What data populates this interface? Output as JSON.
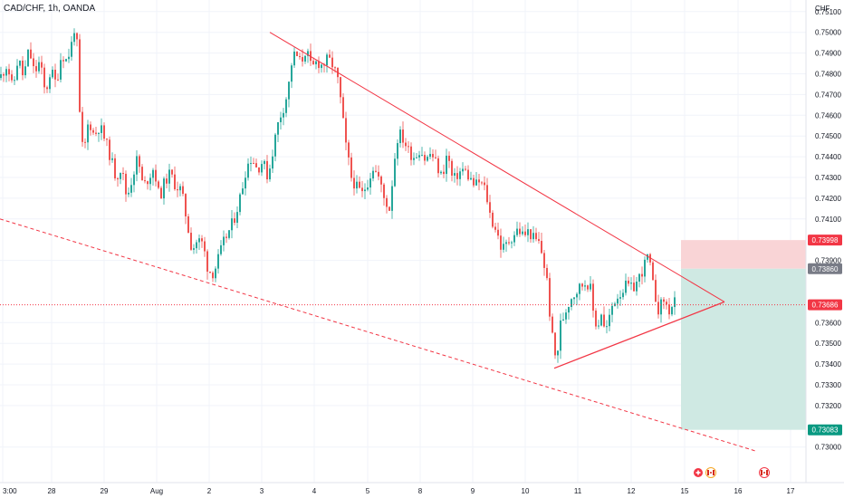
{
  "header": {
    "symbol_label": "CAD/CHF, 1h, OANDA"
  },
  "price_axis": {
    "currency": "CHF",
    "ticks": [
      "0.75100",
      "0.75000",
      "0.74900",
      "0.74800",
      "0.74700",
      "0.74600",
      "0.74500",
      "0.74400",
      "0.74300",
      "0.74200",
      "0.74100",
      "0.73900",
      "0.73600",
      "0.73500",
      "0.73400",
      "0.73300",
      "0.73200",
      "0.73000"
    ],
    "tick_values": [
      0.751,
      0.75,
      0.749,
      0.748,
      0.747,
      0.746,
      0.745,
      0.744,
      0.743,
      0.742,
      0.741,
      0.739,
      0.736,
      0.735,
      0.734,
      0.733,
      0.732,
      0.73
    ]
  },
  "price_tags": [
    {
      "label": "0.73998",
      "value": 0.73998,
      "color": "#f23645"
    },
    {
      "label": "0.73860",
      "value": 0.7386,
      "color": "#787b86"
    },
    {
      "label": "0.73686",
      "value": 0.73686,
      "color": "#f23645"
    },
    {
      "label": "0.73083",
      "value": 0.73083,
      "color": "#089981"
    }
  ],
  "time_axis": {
    "labels": [
      "3:00",
      "28",
      "29",
      "Aug",
      "2",
      "3",
      "4",
      "5",
      "8",
      "9",
      "10",
      "11",
      "12",
      "15",
      "16",
      "17"
    ]
  },
  "colors": {
    "up": "#26a69a",
    "down": "#ef5350",
    "trendline": "#f23645",
    "stop_zone": "#f9d4d6",
    "target_zone": "#cfe9e3",
    "grid": "#f0f3fa",
    "current_price_line": "#f23645"
  },
  "event_icons": [
    "plus-event-icon",
    "canada-flag-icon",
    "canada-flag-icon"
  ],
  "chart_data": {
    "type": "candlestick",
    "instrument": "CAD/CHF",
    "interval": "1h",
    "source": "OANDA",
    "ylim": [
      0.7297,
      0.752
    ],
    "current_price": 0.73686,
    "close_path": [
      [
        0,
        0.7478
      ],
      [
        8,
        0.7485
      ],
      [
        14,
        0.7472
      ],
      [
        20,
        0.7488
      ],
      [
        26,
        0.7478
      ],
      [
        32,
        0.7492
      ],
      [
        38,
        0.748
      ],
      [
        44,
        0.7486
      ],
      [
        50,
        0.747
      ],
      [
        56,
        0.7482
      ],
      [
        62,
        0.7475
      ],
      [
        68,
        0.749
      ],
      [
        74,
        0.7486
      ],
      [
        80,
        0.7496
      ],
      [
        84,
        0.7508
      ],
      [
        87,
        0.7465
      ],
      [
        92,
        0.744
      ],
      [
        98,
        0.7458
      ],
      [
        104,
        0.745
      ],
      [
        110,
        0.7455
      ],
      [
        116,
        0.7448
      ],
      [
        122,
        0.744
      ],
      [
        128,
        0.743
      ],
      [
        134,
        0.7435
      ],
      [
        140,
        0.742
      ],
      [
        146,
        0.743
      ],
      [
        152,
        0.744
      ],
      [
        158,
        0.7425
      ],
      [
        164,
        0.743
      ],
      [
        170,
        0.7435
      ],
      [
        176,
        0.742
      ],
      [
        182,
        0.7428
      ],
      [
        188,
        0.7432
      ],
      [
        194,
        0.7426
      ],
      [
        200,
        0.7424
      ],
      [
        206,
        0.741
      ],
      [
        212,
        0.7395
      ],
      [
        218,
        0.74
      ],
      [
        224,
        0.7398
      ],
      [
        230,
        0.7385
      ],
      [
        236,
        0.7384
      ],
      [
        242,
        0.7392
      ],
      [
        248,
        0.74
      ],
      [
        254,
        0.7405
      ],
      [
        260,
        0.7412
      ],
      [
        266,
        0.7422
      ],
      [
        272,
        0.7435
      ],
      [
        278,
        0.744
      ],
      [
        284,
        0.7434
      ],
      [
        290,
        0.7438
      ],
      [
        296,
        0.743
      ],
      [
        302,
        0.7445
      ],
      [
        308,
        0.7458
      ],
      [
        314,
        0.7465
      ],
      [
        318,
        0.7472
      ],
      [
        322,
        0.7485
      ],
      [
        326,
        0.749
      ],
      [
        332,
        0.7485
      ],
      [
        338,
        0.7492
      ],
      [
        344,
        0.7482
      ],
      [
        350,
        0.7486
      ],
      [
        356,
        0.7484
      ],
      [
        362,
        0.7487
      ],
      [
        368,
        0.7484
      ],
      [
        374,
        0.7475
      ],
      [
        378,
        0.746
      ],
      [
        382,
        0.7445
      ],
      [
        388,
        0.743
      ],
      [
        394,
        0.7425
      ],
      [
        400,
        0.7422
      ],
      [
        406,
        0.7428
      ],
      [
        412,
        0.7435
      ],
      [
        418,
        0.743
      ],
      [
        424,
        0.742
      ],
      [
        430,
        0.7415
      ],
      [
        436,
        0.744
      ],
      [
        440,
        0.7452
      ],
      [
        446,
        0.7448
      ],
      [
        452,
        0.7442
      ],
      [
        458,
        0.744
      ],
      [
        464,
        0.7444
      ],
      [
        470,
        0.7438
      ],
      [
        476,
        0.7442
      ],
      [
        482,
        0.7436
      ],
      [
        488,
        0.743
      ],
      [
        494,
        0.7442
      ],
      [
        500,
        0.7428
      ],
      [
        506,
        0.7432
      ],
      [
        512,
        0.7434
      ],
      [
        518,
        0.743
      ],
      [
        524,
        0.7426
      ],
      [
        530,
        0.7428
      ],
      [
        536,
        0.7424
      ],
      [
        542,
        0.741
      ],
      [
        548,
        0.7405
      ],
      [
        554,
        0.7395
      ],
      [
        560,
        0.7398
      ],
      [
        566,
        0.7402
      ],
      [
        572,
        0.7405
      ],
      [
        578,
        0.7402
      ],
      [
        584,
        0.7404
      ],
      [
        590,
        0.74
      ],
      [
        596,
        0.7398
      ],
      [
        600,
        0.739
      ],
      [
        604,
        0.738
      ],
      [
        608,
        0.736
      ],
      [
        612,
        0.7345
      ],
      [
        615,
        0.7342
      ],
      [
        618,
        0.7358
      ],
      [
        624,
        0.7365
      ],
      [
        630,
        0.7372
      ],
      [
        636,
        0.7375
      ],
      [
        642,
        0.7378
      ],
      [
        648,
        0.738
      ],
      [
        652,
        0.7376
      ],
      [
        656,
        0.7362
      ],
      [
        660,
        0.7358
      ],
      [
        664,
        0.7365
      ],
      [
        668,
        0.7355
      ],
      [
        672,
        0.736
      ],
      [
        676,
        0.7368
      ],
      [
        680,
        0.7372
      ],
      [
        686,
        0.7375
      ],
      [
        692,
        0.7378
      ],
      [
        698,
        0.7376
      ],
      [
        704,
        0.738
      ],
      [
        708,
        0.7384
      ],
      [
        712,
        0.7388
      ],
      [
        716,
        0.7393
      ],
      [
        720,
        0.738
      ],
      [
        724,
        0.7372
      ],
      [
        728,
        0.7365
      ],
      [
        732,
        0.7372
      ],
      [
        736,
        0.7368
      ],
      [
        740,
        0.7365
      ],
      [
        744,
        0.737
      ],
      [
        747,
        0.73686
      ]
    ],
    "drawings": {
      "descending_resistance": {
        "from": [
          298,
          0.75
        ],
        "to": [
          800,
          0.737
        ]
      },
      "ascending_support": {
        "from": [
          612,
          0.7338
        ],
        "to": [
          800,
          0.737
        ]
      },
      "lower_dashed_trend": {
        "from": [
          0,
          0.741
        ],
        "to": [
          835,
          0.7298
        ]
      },
      "stop_zone": {
        "from_x": 752,
        "to_x": 890,
        "top": 0.73998,
        "bottom": 0.7386
      },
      "target_zone": {
        "from_x": 752,
        "to_x": 890,
        "top": 0.7386,
        "bottom": 0.73083
      }
    }
  }
}
